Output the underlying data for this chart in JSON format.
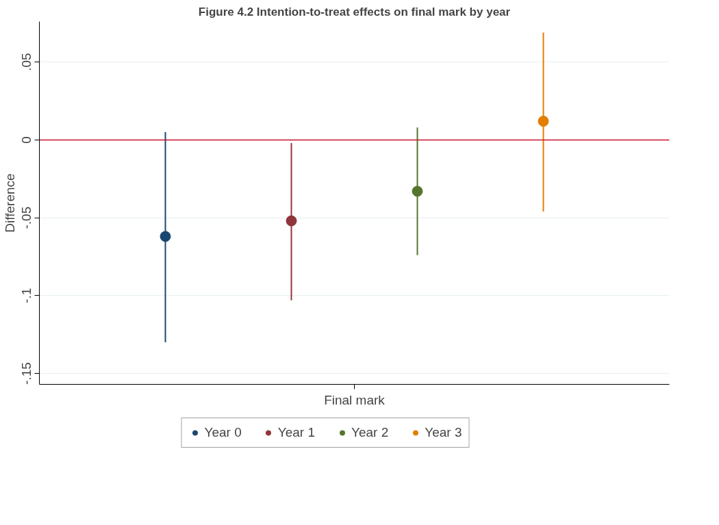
{
  "chart_data": {
    "type": "scatter",
    "title": "Figure 4.2 Intention-to-treat effects on final mark by year",
    "xlabel": "Final mark",
    "ylabel": "Difference",
    "categories": [
      null,
      null,
      null,
      null
    ],
    "ylim": [
      -0.157,
      0.076
    ],
    "yticks": [
      {
        "value": -0.15,
        "label": "-.15"
      },
      {
        "value": -0.1,
        "label": "-.1"
      },
      {
        "value": -0.05,
        "label": "-.05"
      },
      {
        "value": 0,
        "label": "0"
      },
      {
        "value": 0.05,
        "label": ".05"
      }
    ],
    "grid": "y",
    "legend": "bottom",
    "marker": "circle",
    "ref_lines": [
      {
        "axis": "y",
        "value": 0,
        "color": "#c8102e"
      }
    ],
    "series": [
      {
        "name": "Year 0",
        "color": "#1a476f",
        "values": [
          -0.062,
          null,
          null,
          null
        ],
        "errors": [
          [
            -0.13,
            0.005
          ],
          null,
          null,
          null
        ]
      },
      {
        "name": "Year 1",
        "color": "#90353b",
        "values": [
          null,
          -0.052,
          null,
          null
        ],
        "errors": [
          null,
          [
            -0.103,
            -0.002
          ],
          null,
          null
        ]
      },
      {
        "name": "Year 2",
        "color": "#55752f",
        "values": [
          null,
          null,
          -0.033,
          null
        ],
        "errors": [
          null,
          null,
          [
            -0.074,
            0.008
          ],
          null
        ]
      },
      {
        "name": "Year 3",
        "color": "#e37e00",
        "values": [
          null,
          null,
          null,
          0.012
        ],
        "errors": [
          null,
          null,
          null,
          [
            -0.046,
            0.069
          ]
        ]
      }
    ]
  }
}
